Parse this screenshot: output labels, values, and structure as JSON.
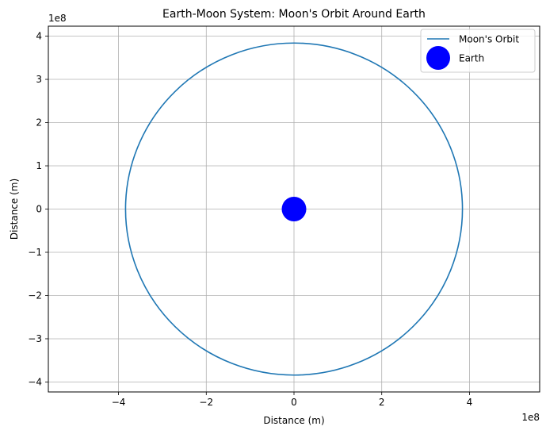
{
  "chart_data": {
    "type": "line",
    "title": "Earth-Moon System: Moon's Orbit Around Earth",
    "xlabel": "Distance (m)",
    "ylabel": "Distance (m)",
    "x_offset_label": "1e8",
    "y_offset_label": "1e8",
    "xlim": [
      -5.6,
      5.6
    ],
    "ylim": [
      -4.23,
      4.23
    ],
    "x_ticks": [
      -4,
      -2,
      0,
      2,
      4
    ],
    "x_tick_labels": [
      "−4",
      "−2",
      "0",
      "2",
      "4"
    ],
    "y_ticks": [
      -4,
      -3,
      -2,
      -1,
      0,
      1,
      2,
      3,
      4
    ],
    "y_tick_labels": [
      "−4",
      "−3",
      "−2",
      "−1",
      "0",
      "1",
      "2",
      "3",
      "4"
    ],
    "grid": true,
    "legend_position": "top-right",
    "series": [
      {
        "name": "Moon's Orbit",
        "kind": "circle-line",
        "center": [
          0,
          0
        ],
        "radius": 3.84,
        "color": "#1f77b4"
      },
      {
        "name": "Earth",
        "kind": "marker",
        "x": 0,
        "y": 0,
        "color": "#0000ff"
      }
    ]
  }
}
